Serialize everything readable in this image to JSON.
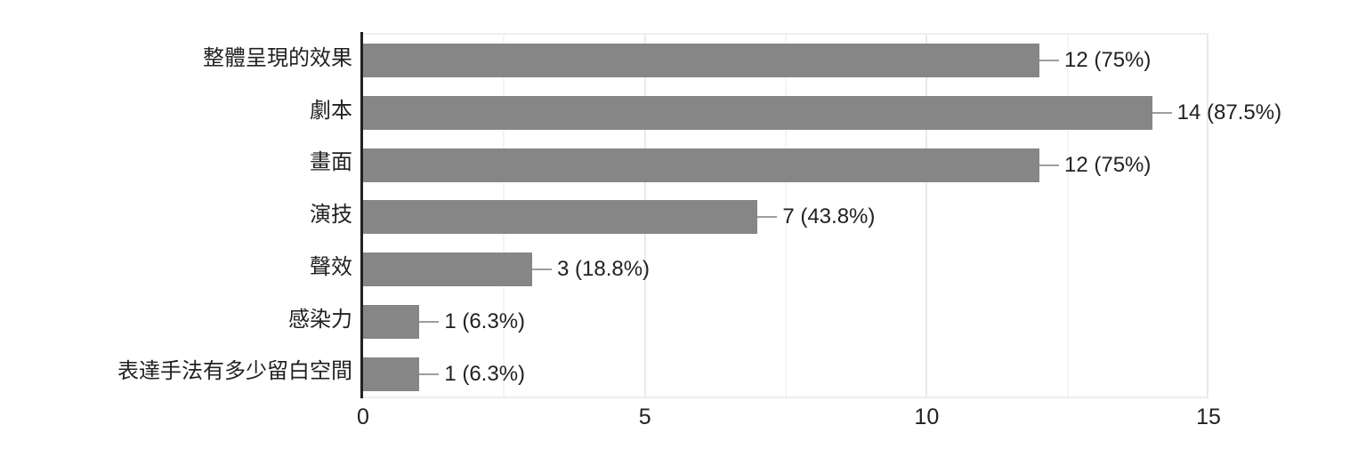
{
  "chart_data": {
    "type": "bar",
    "orientation": "horizontal",
    "title": "",
    "xlabel": "",
    "ylabel": "",
    "categories": [
      "整體呈現的效果",
      "劇本",
      "畫面",
      "演技",
      "聲效",
      "感染力",
      "表達手法有多少留白空間"
    ],
    "values": [
      12,
      14,
      12,
      7,
      3,
      1,
      1
    ],
    "percentages": [
      75,
      87.5,
      75,
      43.8,
      18.8,
      6.3,
      6.3
    ],
    "value_labels": [
      "12 (75%)",
      "14 (87.5%)",
      "12 (75%)",
      "7 (43.8%)",
      "3 (18.8%)",
      "1 (6.3%)",
      "1 (6.3%)"
    ],
    "xlim": [
      0,
      15
    ],
    "x_ticks": [
      0,
      5,
      10,
      15
    ],
    "x_tick_labels": [
      "0",
      "5",
      "10",
      "15"
    ],
    "x_minor_gridlines": [
      2.5,
      7.5,
      12.5
    ],
    "grid": true,
    "legend": null,
    "colors": {
      "bar": "#868686",
      "leader_line": "#9e9e9e",
      "axis_line": "#212121",
      "text": "#212121",
      "major_gridline": "#e9e9e9",
      "minor_gridline": "#f4f4f4",
      "background": "#ffffff"
    }
  }
}
